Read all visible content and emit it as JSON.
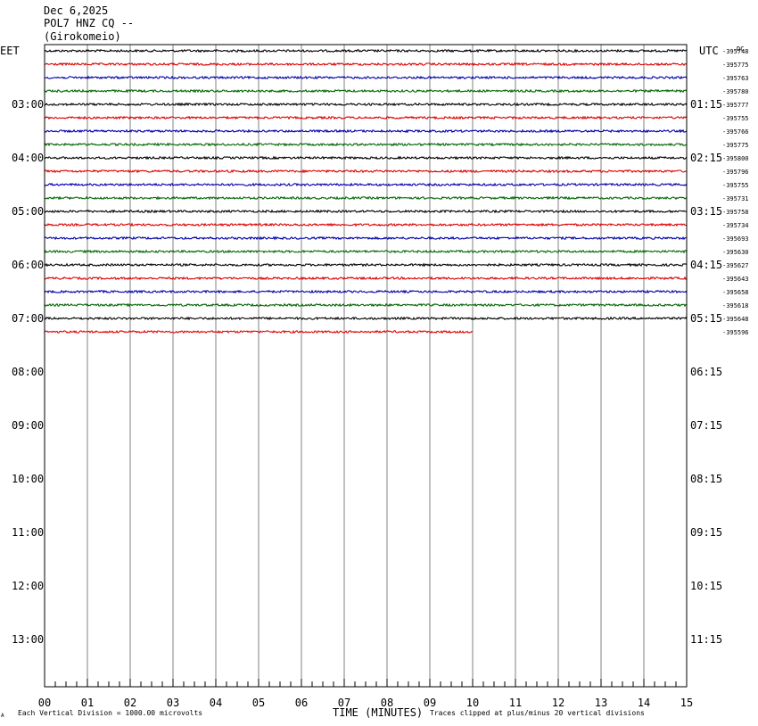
{
  "header": {
    "date": "Dec 6,2025",
    "station": "POL7 HNZ CQ --",
    "location": "(Girokomeio)"
  },
  "left_tz": "EET",
  "right_tz": "UTC",
  "dc_label": "DC",
  "footer": {
    "mark": "A",
    "scale": "Each Vertical Division = 1000.00 microvolts",
    "xlabel": "TIME (MINUTES)",
    "clip": "Traces clipped at plus/minus 20 vertical divisions"
  },
  "colors": {
    "trace_cycle": [
      "#000000",
      "#dd0000",
      "#0000aa",
      "#006600"
    ],
    "grid": "#808080",
    "frame": "#000000"
  },
  "chart_data": {
    "type": "line",
    "title": "Dec 6,2025 POL7 HNZ CQ -- (Girokomeio)",
    "xlabel": "TIME (MINUTES)",
    "xlim": [
      0,
      15
    ],
    "x_ticks": [
      "00",
      "01",
      "02",
      "03",
      "04",
      "05",
      "06",
      "07",
      "08",
      "09",
      "10",
      "11",
      "12",
      "13",
      "14",
      "15"
    ],
    "hour_labels_left": [
      "03:00",
      "04:00",
      "05:00",
      "06:00",
      "07:00",
      "08:00",
      "09:00",
      "10:00",
      "11:00",
      "12:00",
      "13:00"
    ],
    "hour_labels_right": [
      "01:15",
      "02:15",
      "03:15",
      "04:15",
      "05:15",
      "06:15",
      "07:15",
      "08:15",
      "09:15",
      "10:15",
      "11:15"
    ],
    "trace_dc_values": [
      "-395748",
      "-395775",
      "-395763",
      "-395780",
      "-395777",
      "-395755",
      "-395766",
      "-395775",
      "-395800",
      "-395796",
      "-395755",
      "-395731",
      "-395758",
      "-395734",
      "-395693",
      "-395630",
      "-395627",
      "-395643",
      "-395658",
      "-395618",
      "-395648",
      "-395596"
    ],
    "last_trace_end_minute": 10,
    "grid": true
  }
}
